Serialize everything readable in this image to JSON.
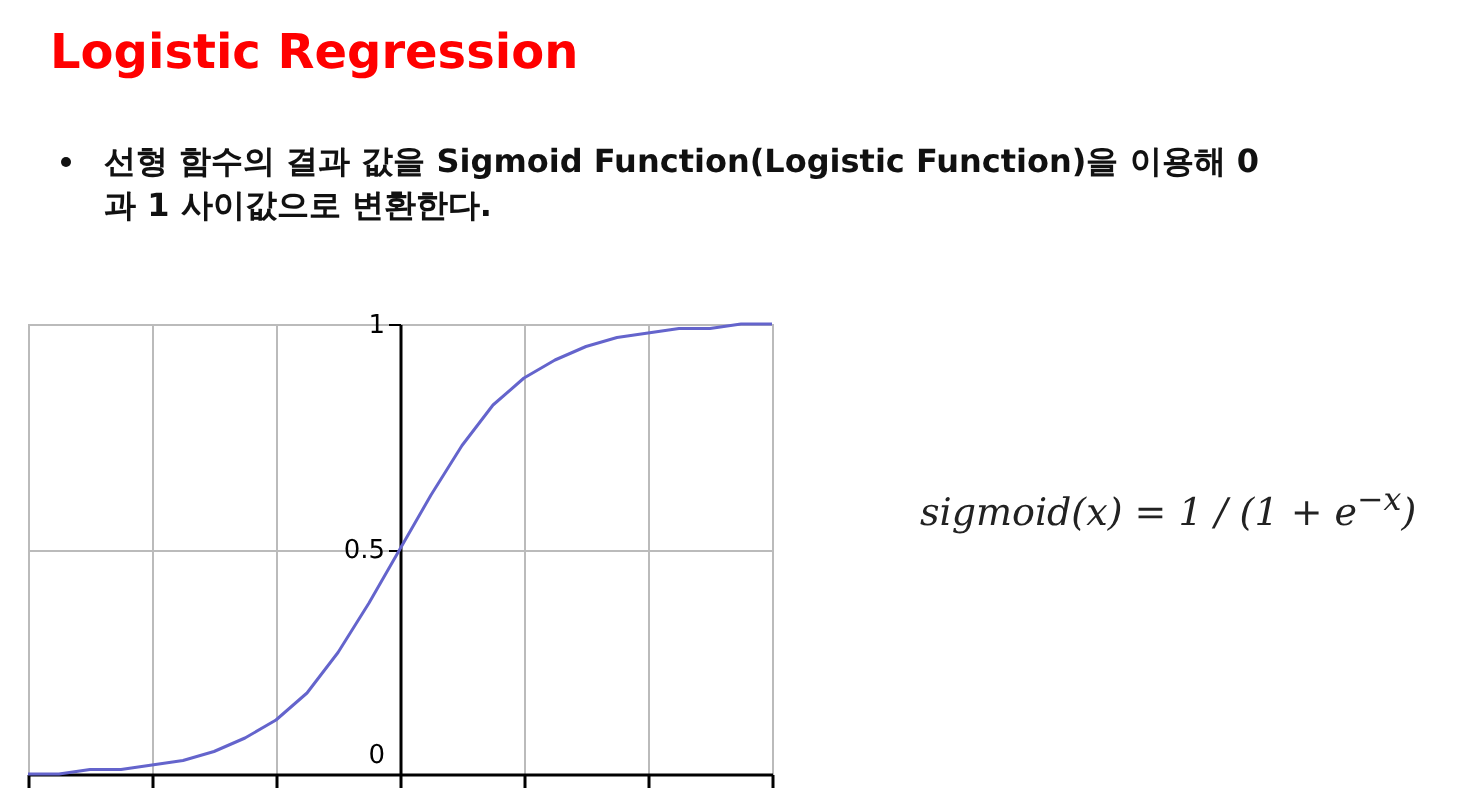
{
  "chart_data": {
    "type": "line",
    "title": "Logistic Regression",
    "subtitle": "선형 함수의 결과 값을 Sigmoid Function(Logistic Function)을 이용해 0과 1 사이값으로 변환한다.",
    "annotations": [
      "sigmoid(x) = 1 / (1 + e$^{−x}$)"
    ],
    "categories": [
      null,
      null,
      null,
      null,
      null,
      null,
      null,
      null,
      null,
      null,
      null,
      null,
      null,
      null,
      null,
      null,
      null,
      null,
      null,
      null,
      null,
      null,
      null,
      null,
      null
    ],
    "series": [
      {
        "color": "#6464cc",
        "values": [
          0.0,
          0.0,
          0.01,
          0.01,
          0.02,
          0.03,
          0.05,
          0.08,
          0.12,
          0.18,
          0.27,
          0.38,
          0.5,
          0.62,
          0.73,
          0.82,
          0.88,
          0.92,
          0.95,
          0.97,
          0.98,
          0.99,
          0.99,
          1.0,
          1.0
        ]
      }
    ],
    "ylim": [
      0,
      1
    ],
    "yticks": [
      0,
      0.5,
      1
    ],
    "grid": true,
    "legend": false,
    "marker": "none",
    "line_style": "solid"
  }
}
